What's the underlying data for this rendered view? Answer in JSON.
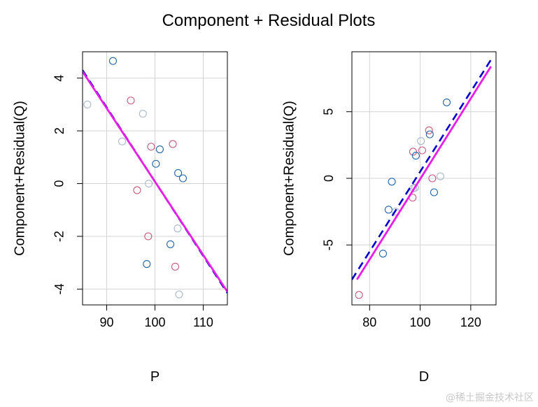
{
  "figure": {
    "title": "Component + Residual Plots",
    "watermark": "@稀土掘金技术社区"
  },
  "colors": {
    "blue_points": "#2166ac",
    "pink_points": "#c85a7a",
    "light_points": "#a9b8cc",
    "reference_line": "#0000cc",
    "smooth_line": "#e81ee8",
    "grid": "#d3d3d3"
  },
  "chart_data": [
    {
      "type": "scatter",
      "xlabel": "P",
      "ylabel": "Component+Residual(Q)",
      "xlim": [
        85,
        115
      ],
      "ylim": [
        -4.6,
        5
      ],
      "xticks": [
        90,
        100,
        110
      ],
      "yticks": [
        -4,
        -2,
        0,
        2,
        4
      ],
      "grid": true,
      "points": [
        {
          "x": 91.3,
          "y": 4.65,
          "group": "blue"
        },
        {
          "x": 86.0,
          "y": 3.0,
          "group": "light"
        },
        {
          "x": 95.0,
          "y": 3.15,
          "group": "pink"
        },
        {
          "x": 97.5,
          "y": 2.65,
          "group": "light"
        },
        {
          "x": 93.2,
          "y": 1.6,
          "group": "light"
        },
        {
          "x": 99.2,
          "y": 1.4,
          "group": "pink"
        },
        {
          "x": 101.0,
          "y": 1.3,
          "group": "blue"
        },
        {
          "x": 103.7,
          "y": 1.5,
          "group": "pink"
        },
        {
          "x": 100.2,
          "y": 0.75,
          "group": "blue"
        },
        {
          "x": 104.8,
          "y": 0.4,
          "group": "blue"
        },
        {
          "x": 105.8,
          "y": 0.2,
          "group": "blue"
        },
        {
          "x": 98.7,
          "y": 0.0,
          "group": "light"
        },
        {
          "x": 96.3,
          "y": -0.25,
          "group": "pink"
        },
        {
          "x": 104.7,
          "y": -1.7,
          "group": "light"
        },
        {
          "x": 98.6,
          "y": -2.0,
          "group": "pink"
        },
        {
          "x": 103.2,
          "y": -2.3,
          "group": "blue"
        },
        {
          "x": 98.3,
          "y": -3.05,
          "group": "blue"
        },
        {
          "x": 104.2,
          "y": -3.15,
          "group": "pink"
        },
        {
          "x": 105.0,
          "y": -4.2,
          "group": "light"
        }
      ],
      "reference_line": [
        [
          85,
          4.3
        ],
        [
          115,
          -4.15
        ]
      ],
      "smooth_line": [
        [
          85,
          4.25
        ],
        [
          115,
          -4.1
        ]
      ]
    },
    {
      "type": "scatter",
      "xlabel": "D",
      "ylabel": "Component+Residual(Q)",
      "xlim": [
        73,
        130
      ],
      "ylim": [
        -9.5,
        9.5
      ],
      "xticks": [
        80,
        100,
        120
      ],
      "yticks": [
        -5,
        0,
        5
      ],
      "grid": true,
      "points": [
        {
          "x": 110.5,
          "y": 5.7,
          "group": "blue"
        },
        {
          "x": 103.5,
          "y": 3.6,
          "group": "pink"
        },
        {
          "x": 103.8,
          "y": 3.3,
          "group": "blue"
        },
        {
          "x": 100.3,
          "y": 2.8,
          "group": "light"
        },
        {
          "x": 100.8,
          "y": 2.1,
          "group": "pink"
        },
        {
          "x": 97.2,
          "y": 2.0,
          "group": "pink"
        },
        {
          "x": 98.3,
          "y": 1.7,
          "group": "blue"
        },
        {
          "x": 108.0,
          "y": 0.15,
          "group": "light"
        },
        {
          "x": 104.8,
          "y": 0.0,
          "group": "pink"
        },
        {
          "x": 88.8,
          "y": -0.25,
          "group": "blue"
        },
        {
          "x": 98.0,
          "y": -0.7,
          "group": "light"
        },
        {
          "x": 97.3,
          "y": -0.75,
          "group": "light"
        },
        {
          "x": 105.5,
          "y": -1.05,
          "group": "blue"
        },
        {
          "x": 97.0,
          "y": -1.45,
          "group": "pink"
        },
        {
          "x": 87.5,
          "y": -2.35,
          "group": "blue"
        },
        {
          "x": 90.3,
          "y": -2.5,
          "group": "light"
        },
        {
          "x": 85.3,
          "y": -5.65,
          "group": "blue"
        },
        {
          "x": 75.8,
          "y": -8.75,
          "group": "pink"
        }
      ],
      "reference_line": [
        [
          73,
          -7.6
        ],
        [
          128,
          8.9
        ]
      ],
      "smooth_line": [
        [
          75,
          -7.6
        ],
        [
          128,
          8.4
        ]
      ]
    }
  ]
}
